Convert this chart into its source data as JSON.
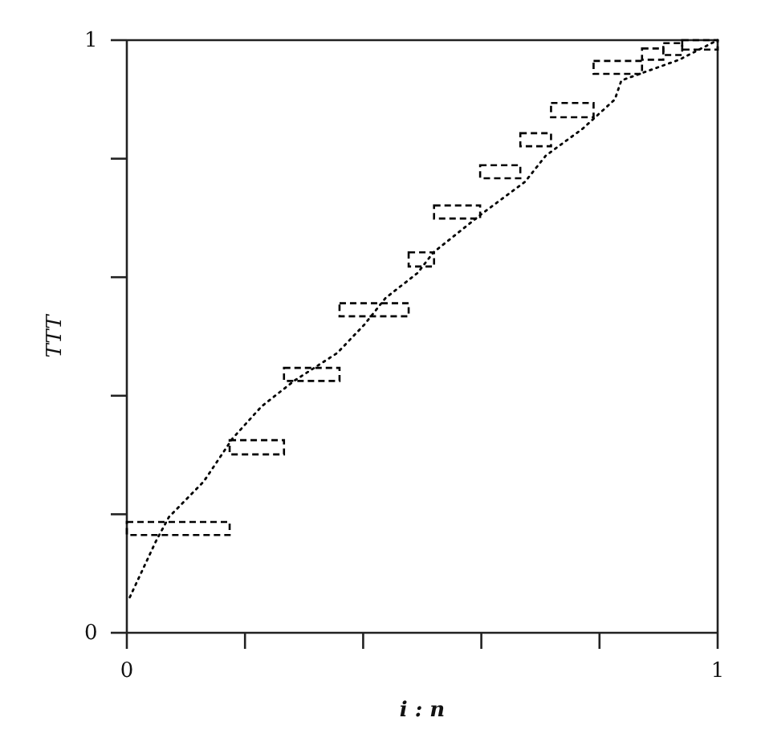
{
  "chart_data": {
    "type": "line",
    "xlabel": "i : n",
    "ylabel": "TTT",
    "xlim": [
      0,
      1
    ],
    "ylim": [
      0,
      1
    ],
    "xticks": [
      0,
      {
        "value": 0.2,
        "label": null
      },
      {
        "value": 0.4,
        "label": null
      },
      {
        "value": 0.6,
        "label": null
      },
      {
        "value": 0.8,
        "label": null
      },
      1
    ],
    "yticks": [
      0,
      {
        "value": 0.2,
        "label": null
      },
      {
        "value": 0.4,
        "label": null
      },
      {
        "value": 0.6,
        "label": null
      },
      {
        "value": 0.8,
        "label": null
      },
      1
    ],
    "series": [
      {
        "color": "#000000",
        "line_style": "dotted",
        "x": [
          0.005,
          0.049,
          0.071,
          0.13,
          0.179,
          0.228,
          0.283,
          0.356,
          0.402,
          0.438,
          0.492,
          0.519,
          0.601,
          0.674,
          0.709,
          0.772,
          0.826,
          0.837,
          0.935,
          1
        ],
        "values": [
          0.06,
          0.154,
          0.195,
          0.255,
          0.328,
          0.382,
          0.425,
          0.472,
          0.52,
          0.565,
          0.607,
          0.642,
          0.707,
          0.761,
          0.805,
          0.851,
          0.9,
          0.932,
          0.967,
          1
        ]
      },
      {
        "type": "bar",
        "color": "#000000",
        "line_style": "dashed",
        "x": [
          0.087,
          0.22,
          0.313,
          0.4185,
          0.4985,
          0.559,
          0.632,
          0.692,
          0.754,
          0.831,
          0.89,
          0.924,
          0.97
        ],
        "base": [
          0.165,
          0.301,
          0.425,
          0.534,
          0.618,
          0.699,
          0.767,
          0.821,
          0.87,
          0.943,
          0.967,
          0.975,
          0.984
        ],
        "values": [
          0.022,
          0.024,
          0.022,
          0.022,
          0.024,
          0.022,
          0.022,
          0.022,
          0.024,
          0.022,
          0.019,
          0.02,
          0.016
        ]
      }
    ]
  }
}
